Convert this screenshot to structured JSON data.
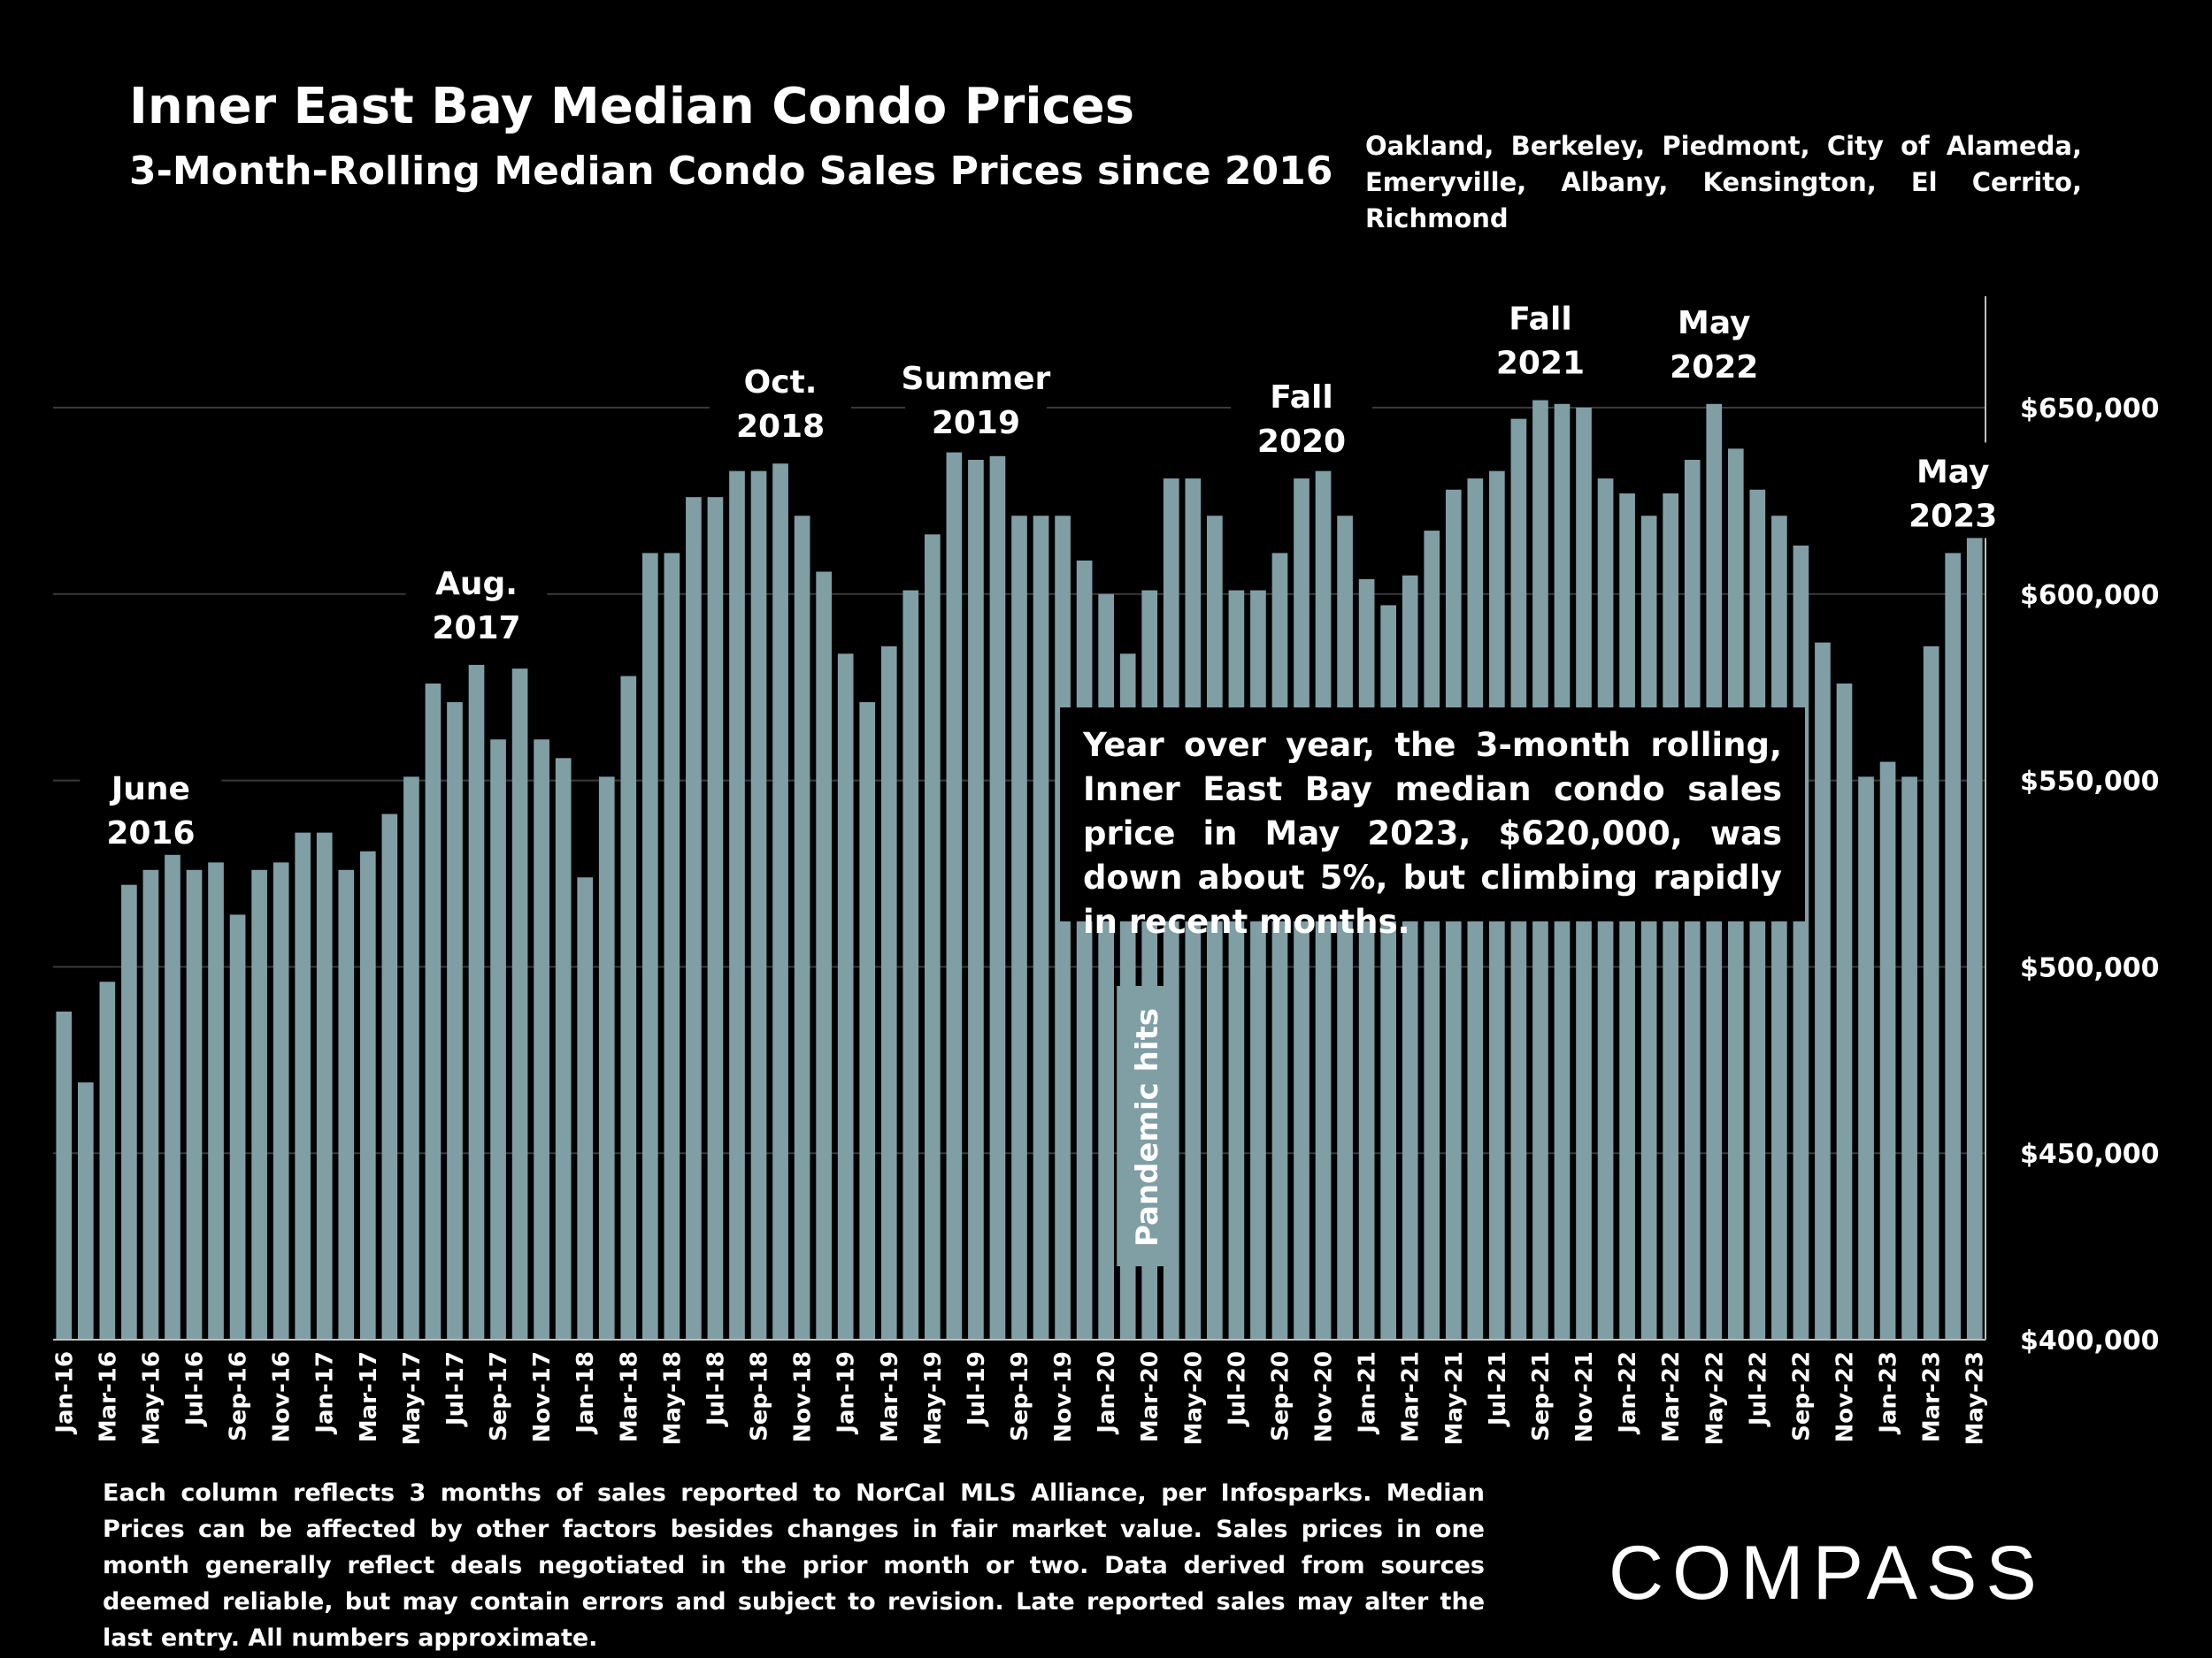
{
  "chart_data": {
    "type": "bar",
    "title": "Inner East Bay Median Condo Prices",
    "subtitle": "3-Month-Rolling Median Condo Sales Prices since 2016",
    "region_note": "Oakland, Berkeley, Piedmont, City of Alameda, Emeryville, Albany, Kensington, El Cerrito, Richmond",
    "categories": [
      "Jan-16",
      "Feb-16",
      "Mar-16",
      "Apr-16",
      "May-16",
      "Jun-16",
      "Jul-16",
      "Aug-16",
      "Sep-16",
      "Oct-16",
      "Nov-16",
      "Dec-16",
      "Jan-17",
      "Feb-17",
      "Mar-17",
      "Apr-17",
      "May-17",
      "Jun-17",
      "Jul-17",
      "Aug-17",
      "Sep-17",
      "Oct-17",
      "Nov-17",
      "Dec-17",
      "Jan-18",
      "Feb-18",
      "Mar-18",
      "Apr-18",
      "May-18",
      "Jun-18",
      "Jul-18",
      "Aug-18",
      "Sep-18",
      "Oct-18",
      "Nov-18",
      "Dec-18",
      "Jan-19",
      "Feb-19",
      "Mar-19",
      "Apr-19",
      "May-19",
      "Jun-19",
      "Jul-19",
      "Aug-19",
      "Sep-19",
      "Oct-19",
      "Nov-19",
      "Dec-19",
      "Jan-20",
      "Feb-20",
      "Mar-20",
      "Apr-20",
      "May-20",
      "Jun-20",
      "Jul-20",
      "Aug-20",
      "Sep-20",
      "Oct-20",
      "Nov-20",
      "Dec-20",
      "Jan-21",
      "Feb-21",
      "Mar-21",
      "Apr-21",
      "May-21",
      "Jun-21",
      "Jul-21",
      "Aug-21",
      "Sep-21",
      "Oct-21",
      "Nov-21",
      "Dec-21",
      "Jan-22",
      "Feb-22",
      "Mar-22",
      "Apr-22",
      "May-22",
      "Jun-22",
      "Jul-22",
      "Aug-22",
      "Sep-22",
      "Oct-22",
      "Nov-22",
      "Dec-22",
      "Jan-23",
      "Feb-23",
      "Mar-23",
      "Apr-23",
      "May-23"
    ],
    "tick_labels": [
      "Jan-16",
      "Mar-16",
      "May-16",
      "Jul-16",
      "Sep-16",
      "Nov-16",
      "Jan-17",
      "Mar-17",
      "May-17",
      "Jul-17",
      "Sep-17",
      "Nov-17",
      "Jan-18",
      "Mar-18",
      "May-18",
      "Jul-18",
      "Sep-18",
      "Nov-18",
      "Jan-19",
      "Mar-19",
      "May-19",
      "Jul-19",
      "Sep-19",
      "Nov-19",
      "Jan-20",
      "Mar-20",
      "May-20",
      "Jul-20",
      "Sep-20",
      "Nov-20",
      "Jan-21",
      "Mar-21",
      "May-21",
      "Jul-21",
      "Sep-21",
      "Nov-21",
      "Jan-22",
      "Mar-22",
      "May-22",
      "Jul-22",
      "Sep-22",
      "Nov-22",
      "Jan-23",
      "Mar-23",
      "May-23"
    ],
    "values": [
      488000,
      469000,
      496000,
      522000,
      526000,
      531000,
      526000,
      528000,
      514000,
      526000,
      528000,
      536000,
      536000,
      526000,
      531000,
      541000,
      551000,
      576000,
      571000,
      581000,
      561000,
      580000,
      561000,
      556000,
      524000,
      551000,
      578000,
      611000,
      611000,
      626000,
      626000,
      633000,
      633000,
      635000,
      621000,
      606000,
      584000,
      571000,
      586000,
      601000,
      616000,
      638000,
      636000,
      637000,
      621000,
      621000,
      621000,
      609000,
      600000,
      584000,
      601000,
      631000,
      631000,
      621000,
      601000,
      601000,
      611000,
      631000,
      633000,
      621000,
      604000,
      597000,
      605000,
      617000,
      628000,
      631000,
      633000,
      647000,
      652000,
      651000,
      650000,
      631000,
      627000,
      621000,
      627000,
      636000,
      651000,
      639000,
      628000,
      621000,
      613000,
      587000,
      576000,
      551000,
      555000,
      551000,
      586000,
      611000,
      620000
    ],
    "ylim": [
      400000,
      680000
    ],
    "yticks": [
      "$400,000",
      "$450,000",
      "$500,000",
      "$550,000",
      "$600,000",
      "$650,000"
    ],
    "ytick_values": [
      400000,
      450000,
      500000,
      550000,
      600000,
      650000
    ],
    "bar_color": "#7f9fa5",
    "grid": true,
    "annotations": [
      {
        "text": [
          "June",
          "2016"
        ],
        "at": "May-16"
      },
      {
        "text": [
          "Aug.",
          "2017"
        ],
        "at": "Aug-17"
      },
      {
        "text": [
          "Oct.",
          "2018"
        ],
        "at": "Oct-18"
      },
      {
        "text": [
          "Summer",
          "2019"
        ],
        "at": "Jul-19"
      },
      {
        "text": [
          "Fall",
          "2020"
        ],
        "at": "Oct-20"
      },
      {
        "text": [
          "Fall",
          "2021"
        ],
        "at": "Sep-21"
      },
      {
        "text": [
          "May",
          "2022"
        ],
        "at": "May-22"
      },
      {
        "text": [
          "May",
          "2023"
        ],
        "at": "Apr-23"
      }
    ],
    "vertical_label": {
      "text": "Pandemic hits",
      "at": "Mar-20"
    }
  },
  "callout": "Year over year, the 3-month rolling, Inner East Bay median condo sales price in May 2023, $620,000, was down about 5%, but climbing rapidly in recent months.",
  "footnote": "Each column reflects 3 months of sales reported to NorCal MLS Alliance, per Infosparks. Median Prices can be affected by other factors besides changes in fair market value. Sales prices in one month generally reflect deals negotiated in the prior month or two. Data derived from sources deemed reliable, but may contain errors and subject to revision. Late reported sales may alter the last entry. All numbers approximate.",
  "logo": "COMPASS"
}
